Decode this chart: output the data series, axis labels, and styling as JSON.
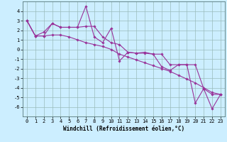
{
  "xlabel": "Windchill (Refroidissement éolien,°C)",
  "x": [
    0,
    1,
    2,
    3,
    4,
    5,
    6,
    7,
    8,
    9,
    10,
    11,
    12,
    13,
    14,
    15,
    16,
    17,
    18,
    19,
    20,
    21,
    22,
    23
  ],
  "y_main": [
    3.0,
    1.4,
    1.4,
    2.7,
    2.3,
    2.3,
    2.3,
    4.5,
    1.3,
    0.7,
    2.2,
    -1.2,
    -0.3,
    -0.4,
    -0.3,
    -0.5,
    -1.8,
    -2.2,
    -1.6,
    -1.6,
    -5.6,
    -4.1,
    -6.2,
    -4.7
  ],
  "y_upper": [
    3.0,
    1.4,
    1.8,
    2.7,
    2.3,
    2.3,
    2.3,
    2.4,
    2.4,
    1.3,
    0.7,
    0.5,
    -0.3,
    -0.4,
    -0.4,
    -0.5,
    -0.5,
    -1.6,
    -1.6,
    -1.6,
    -1.6,
    -4.1,
    -4.7,
    -4.7
  ],
  "y_lower": [
    3.0,
    1.4,
    1.4,
    1.5,
    1.5,
    1.3,
    1.0,
    0.7,
    0.5,
    0.3,
    0.0,
    -0.5,
    -0.8,
    -1.1,
    -1.4,
    -1.7,
    -2.0,
    -2.3,
    -2.7,
    -3.1,
    -3.5,
    -4.0,
    -4.5,
    -4.7
  ],
  "color": "#993399",
  "bg_color": "#cceeff",
  "grid_color": "#99bbbb",
  "ylim": [
    -7,
    5
  ],
  "yticks": [
    -6,
    -5,
    -4,
    -3,
    -2,
    -1,
    0,
    1,
    2,
    3,
    4
  ],
  "xlim": [
    -0.5,
    23.5
  ],
  "xticks": [
    0,
    1,
    2,
    3,
    4,
    5,
    6,
    7,
    8,
    9,
    10,
    11,
    12,
    13,
    14,
    15,
    16,
    17,
    18,
    19,
    20,
    21,
    22,
    23
  ],
  "xlabel_fontsize": 5.5,
  "tick_fontsize": 5,
  "line_width": 0.8,
  "marker": "D",
  "marker_size": 1.8
}
